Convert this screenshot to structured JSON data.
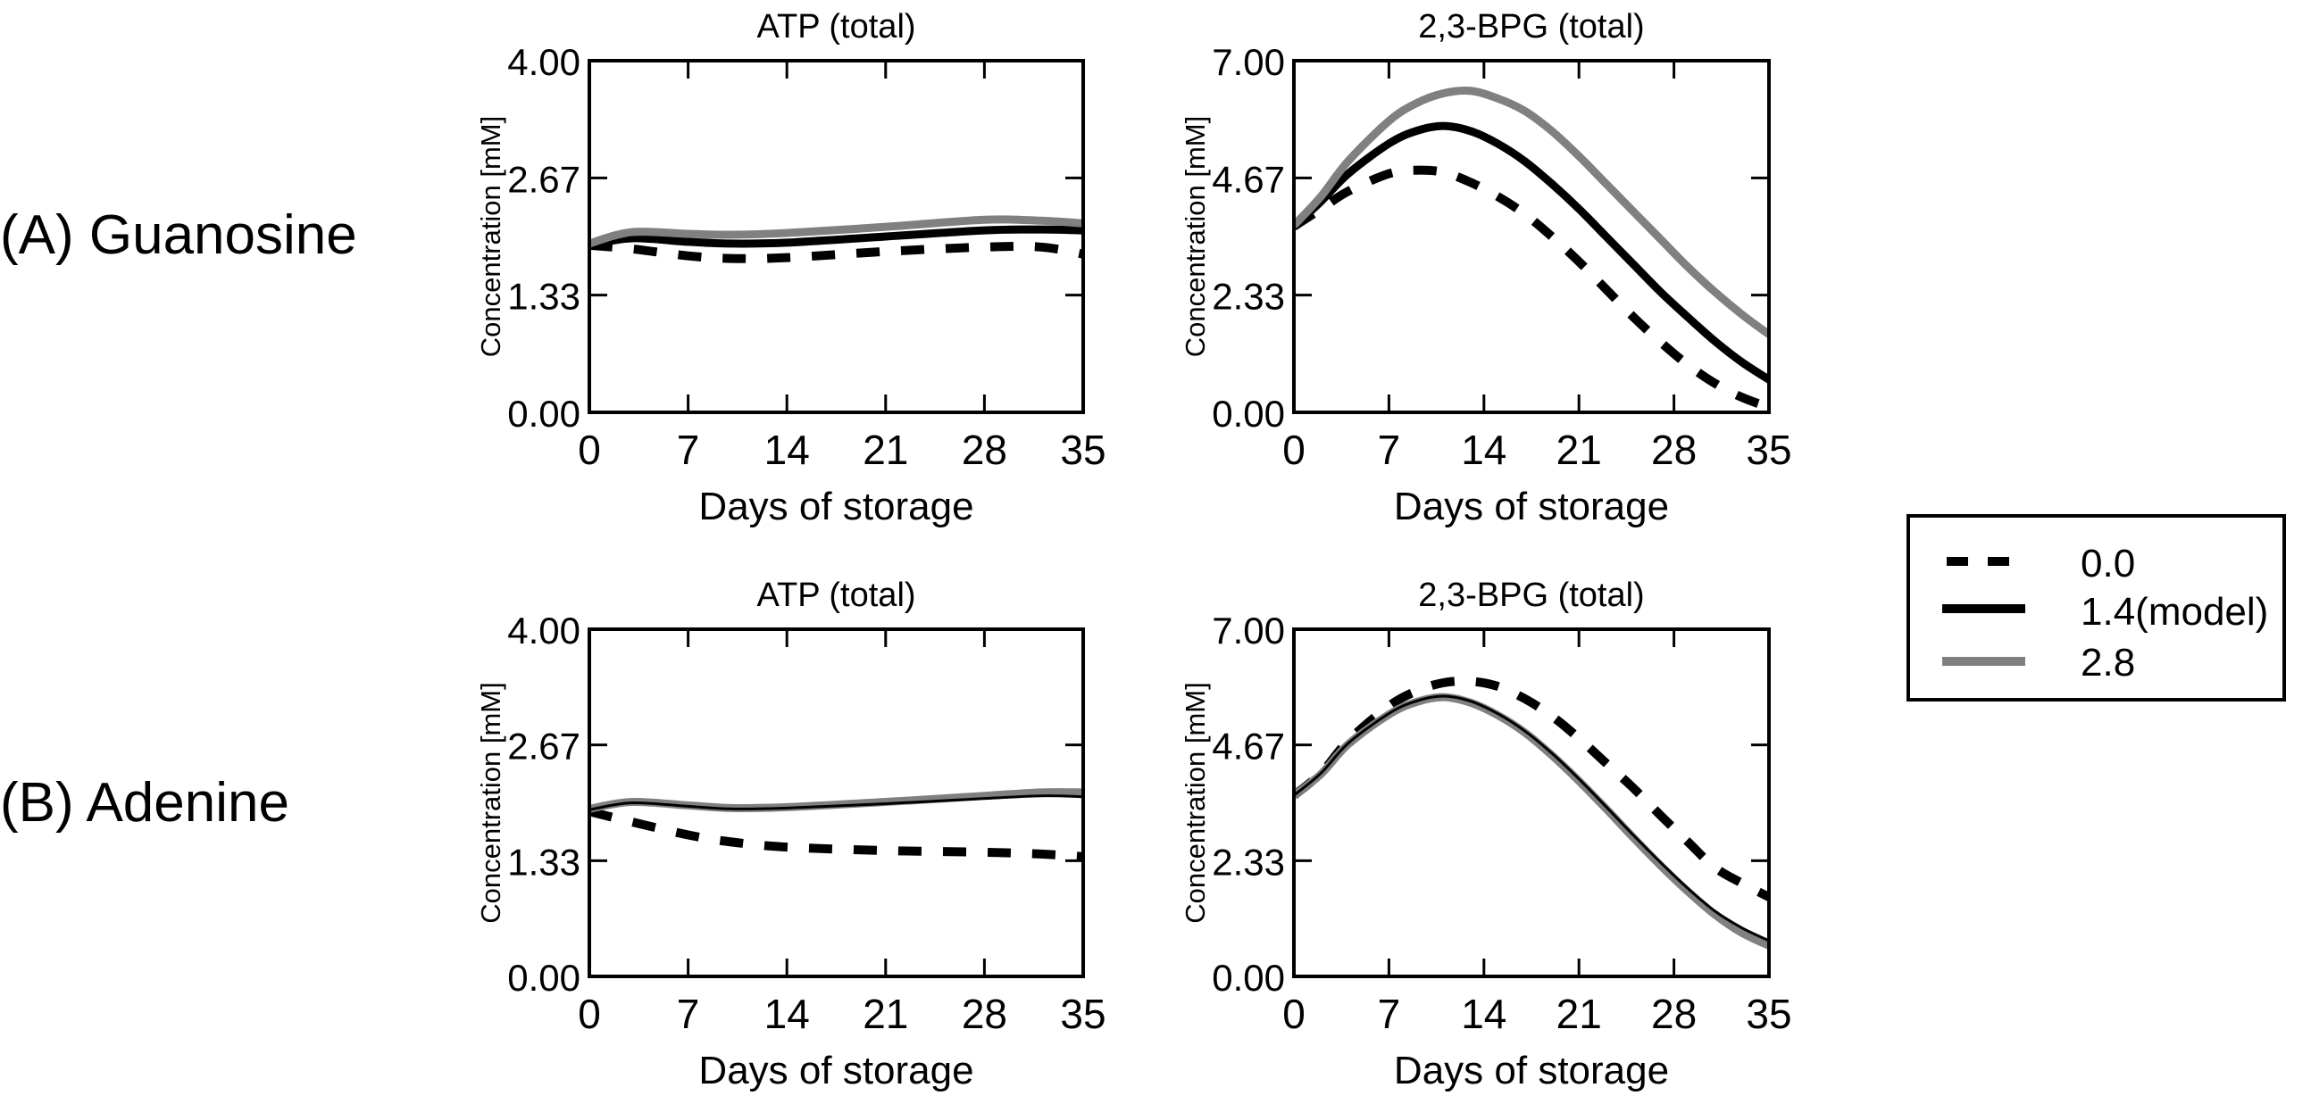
{
  "row_labels": [
    "(A) Guanosine",
    "(B) Adenine"
  ],
  "legend": {
    "placement": "right",
    "entries": [
      {
        "label": "0.0",
        "style": "dashed",
        "color": "#000000"
      },
      {
        "label": "1.4(model)",
        "style": "solid",
        "color": "#000000"
      },
      {
        "label": "2.8",
        "style": "solid",
        "color": "#808080"
      }
    ]
  },
  "chart_data": [
    {
      "type": "line",
      "row": "(A) Guanosine",
      "title": "ATP (total)",
      "xlabel": "Days of storage",
      "ylabel": "Concentration [mM]",
      "xlim": [
        0,
        35
      ],
      "ylim": [
        0,
        4
      ],
      "xticks": [
        "0",
        "7",
        "14",
        "21",
        "28",
        "35"
      ],
      "yticks": [
        "0.00",
        "1.33",
        "2.67",
        "4.00"
      ],
      "x": [
        0,
        3,
        7,
        10,
        14,
        21,
        28,
        32,
        35
      ],
      "series": [
        {
          "name": "0.0",
          "values": [
            1.9,
            1.86,
            1.78,
            1.75,
            1.76,
            1.83,
            1.88,
            1.88,
            1.8
          ]
        },
        {
          "name": "1.4(model)",
          "values": [
            1.9,
            1.98,
            1.94,
            1.92,
            1.93,
            2.0,
            2.07,
            2.08,
            2.07
          ]
        },
        {
          "name": "2.8",
          "values": [
            1.92,
            2.05,
            2.03,
            2.02,
            2.04,
            2.11,
            2.19,
            2.18,
            2.15
          ]
        }
      ]
    },
    {
      "type": "line",
      "row": "(A) Guanosine",
      "title": "2,3-BPG (total)",
      "xlabel": "Days of storage",
      "ylabel": "Concentration [mM]",
      "xlim": [
        0,
        35
      ],
      "ylim": [
        0,
        7
      ],
      "xticks": [
        "0",
        "7",
        "14",
        "21",
        "28",
        "35"
      ],
      "yticks": [
        "0.00",
        "2.33",
        "4.67",
        "7.00"
      ],
      "x": [
        0,
        2,
        4,
        7,
        9,
        11,
        13,
        15,
        17,
        19,
        21,
        23,
        25,
        27,
        29,
        31,
        33,
        35
      ],
      "series": [
        {
          "name": "0.0",
          "values": [
            3.7,
            4.05,
            4.4,
            4.75,
            4.82,
            4.78,
            4.58,
            4.3,
            3.95,
            3.5,
            3.0,
            2.45,
            1.9,
            1.4,
            0.95,
            0.58,
            0.3,
            0.1
          ]
        },
        {
          "name": "1.4(model)",
          "values": [
            3.7,
            4.2,
            4.75,
            5.35,
            5.6,
            5.7,
            5.6,
            5.35,
            5.0,
            4.55,
            4.05,
            3.5,
            2.95,
            2.4,
            1.9,
            1.42,
            1.0,
            0.65
          ]
        },
        {
          "name": "2.8",
          "values": [
            3.72,
            4.3,
            5.0,
            5.8,
            6.15,
            6.35,
            6.4,
            6.25,
            6.0,
            5.6,
            5.1,
            4.55,
            4.0,
            3.45,
            2.9,
            2.4,
            1.95,
            1.55
          ]
        }
      ]
    },
    {
      "type": "line",
      "row": "(B) Adenine",
      "title": "ATP (total)",
      "xlabel": "Days of storage",
      "ylabel": "Concentration [mM]",
      "xlim": [
        0,
        35
      ],
      "ylim": [
        0,
        4
      ],
      "xticks": [
        "0",
        "7",
        "14",
        "21",
        "28",
        "35"
      ],
      "yticks": [
        "0.00",
        "1.33",
        "2.67",
        "4.00"
      ],
      "x": [
        0,
        3,
        7,
        10,
        14,
        21,
        28,
        32,
        35
      ],
      "series": [
        {
          "name": "0.0",
          "values": [
            1.9,
            1.78,
            1.63,
            1.55,
            1.49,
            1.45,
            1.43,
            1.41,
            1.38
          ]
        },
        {
          "name": "1.4(model)",
          "values": [
            1.92,
            2.0,
            1.96,
            1.93,
            1.94,
            1.99,
            2.05,
            2.08,
            2.07
          ]
        },
        {
          "name": "2.8",
          "values": [
            1.93,
            2.01,
            1.97,
            1.94,
            1.95,
            2.01,
            2.08,
            2.12,
            2.12
          ]
        }
      ]
    },
    {
      "type": "line",
      "row": "(B) Adenine",
      "title": "2,3-BPG (total)",
      "xlabel": "Days of storage",
      "ylabel": "Concentration [mM]",
      "xlim": [
        0,
        35
      ],
      "ylim": [
        0,
        7
      ],
      "xticks": [
        "0",
        "7",
        "14",
        "21",
        "28",
        "35"
      ],
      "yticks": [
        "0.00",
        "2.33",
        "4.67",
        "7.00"
      ],
      "x": [
        0,
        2,
        4,
        7,
        9,
        11,
        13,
        15,
        17,
        19,
        21,
        23,
        25,
        27,
        29,
        31,
        33,
        35
      ],
      "series": [
        {
          "name": "0.0",
          "values": [
            3.65,
            4.1,
            4.75,
            5.45,
            5.75,
            5.92,
            5.95,
            5.85,
            5.6,
            5.25,
            4.8,
            4.3,
            3.8,
            3.25,
            2.72,
            2.2,
            1.88,
            1.6
          ]
        },
        {
          "name": "1.4(model)",
          "values": [
            3.65,
            4.1,
            4.7,
            5.3,
            5.55,
            5.65,
            5.55,
            5.3,
            4.95,
            4.5,
            3.98,
            3.42,
            2.85,
            2.3,
            1.78,
            1.32,
            0.98,
            0.72
          ]
        },
        {
          "name": "2.8",
          "values": [
            3.65,
            4.08,
            4.68,
            5.28,
            5.53,
            5.63,
            5.52,
            5.27,
            4.92,
            4.46,
            3.94,
            3.38,
            2.8,
            2.24,
            1.72,
            1.25,
            0.88,
            0.62
          ]
        }
      ]
    }
  ]
}
